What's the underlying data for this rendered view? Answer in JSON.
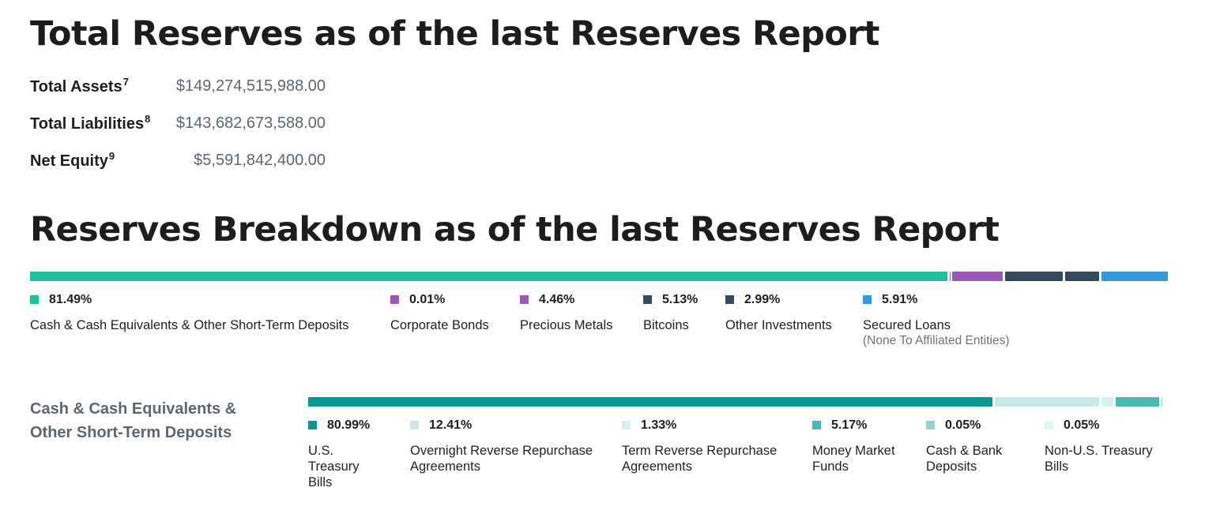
{
  "titles": {
    "total_reserves": "Total Reserves as of the last Reserves Report",
    "breakdown": "Reserves Breakdown as of the last Reserves Report"
  },
  "summary": [
    {
      "label": "Total Assets",
      "sup": "7",
      "value": "$149,274,515,988.00"
    },
    {
      "label": "Total Liabilities",
      "sup": "8",
      "value": "$143,682,673,588.00"
    },
    {
      "label": "Net Equity",
      "sup": "9",
      "value": "$5,591,842,400.00"
    }
  ],
  "chart_data": [
    {
      "type": "bar",
      "subtype": "stacked-100-horizontal",
      "title": "Reserves Breakdown as of the last Reserves Report",
      "series": [
        {
          "name": "Cash & Cash Equivalents & Other Short-Term Deposits",
          "pct_label": "81.49%",
          "value": 81.49,
          "color": "#1fbf9c"
        },
        {
          "name": "Corporate Bonds",
          "pct_label": "0.01%",
          "value": 0.01,
          "color": "#9b59b6"
        },
        {
          "name": "Precious Metals",
          "pct_label": "4.46%",
          "value": 4.46,
          "color": "#9b59b6"
        },
        {
          "name": "Bitcoins",
          "pct_label": "5.13%",
          "value": 5.13,
          "color": "#34495e"
        },
        {
          "name": "Other Investments",
          "pct_label": "2.99%",
          "value": 2.99,
          "color": "#34495e"
        },
        {
          "name": "Secured Loans",
          "note": "(None To Affiliated Entities)",
          "pct_label": "5.91%",
          "value": 5.91,
          "color": "#3498db"
        }
      ]
    },
    {
      "type": "bar",
      "subtype": "stacked-100-horizontal",
      "title": "Cash & Cash Equivalents & Other Short-Term Deposits",
      "series": [
        {
          "name": "U.S. Treasury Bills",
          "pct_label": "80.99%",
          "value": 80.99,
          "color": "#0a9794"
        },
        {
          "name": "Overnight Reverse Repurchase Agreements",
          "pct_label": "12.41%",
          "value": 12.41,
          "color": "#c6e8e7"
        },
        {
          "name": "Term Reverse Repurchase Agreements",
          "pct_label": "1.33%",
          "value": 1.33,
          "color": "#d3efee"
        },
        {
          "name": "Money Market Funds",
          "pct_label": "5.17%",
          "value": 5.17,
          "color": "#4bb8b4"
        },
        {
          "name": "Cash & Bank Deposits",
          "pct_label": "0.05%",
          "value": 0.05,
          "color": "#94d3d0"
        },
        {
          "name": "Non-U.S. Treasury Bills",
          "pct_label": "0.05%",
          "value": 0.05,
          "color": "#e3f4f3"
        }
      ]
    }
  ]
}
